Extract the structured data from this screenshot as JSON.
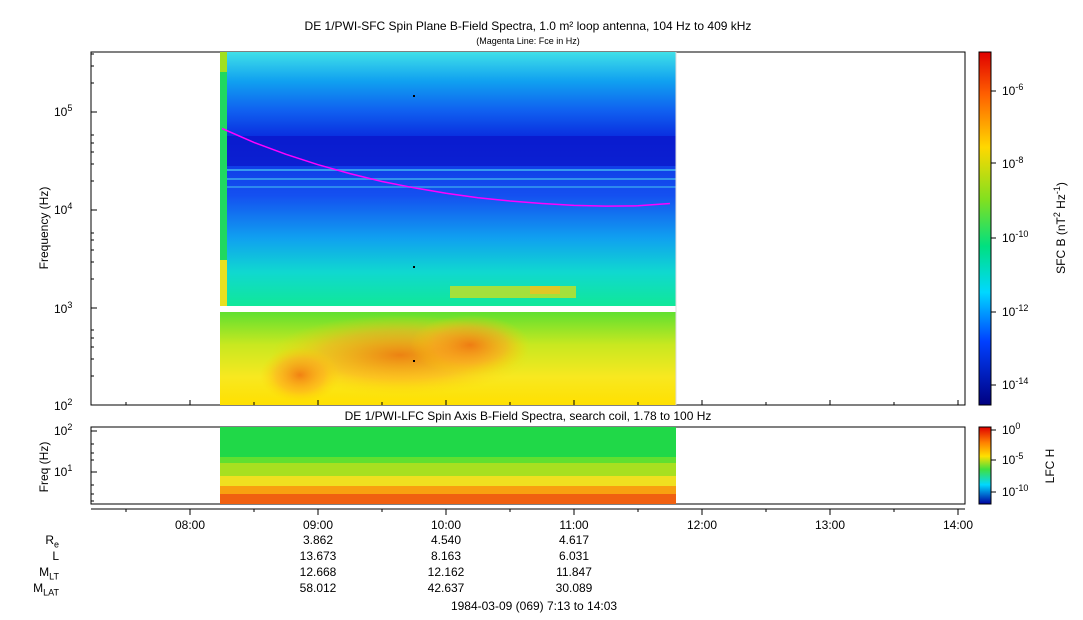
{
  "chart_data": [
    {
      "type": "heatmap",
      "title": "DE 1/PWI-SFC  Spin Plane B-Field Spectra, 1.0 m² loop antenna, 104 Hz to 409 kHz",
      "subtitle": "(Magenta Line: Fce in Hz)",
      "ylabel": "Frequency (Hz)",
      "yscale": "log",
      "ylim": [
        100,
        409000
      ],
      "y_tick_labels": [
        "10",
        "10",
        "10",
        "10"
      ],
      "y_tick_exponents": [
        "2",
        "3",
        "4",
        "5"
      ],
      "xlim": [
        "07:13",
        "14:03"
      ],
      "data_interval": [
        "08:15",
        "11:47"
      ],
      "colorbar": {
        "label": "SFC B (nT",
        "label_sup1": "2",
        "label_mid": " Hz",
        "label_sup2": "-1",
        "label_end": ")",
        "scale": "log",
        "range": [
          3e-15,
          1e-05
        ],
        "tick_base": [
          "10",
          "10",
          "10",
          "10",
          "10"
        ],
        "tick_exponents": [
          "-6",
          "-8",
          "-10",
          "-12",
          "-14"
        ]
      },
      "series": [
        {
          "name": "Fce",
          "color": "#ff00ff",
          "x": [
            "08:15",
            "08:30",
            "08:45",
            "09:00",
            "09:15",
            "09:30",
            "09:45",
            "10:00",
            "10:15",
            "10:30",
            "10:45",
            "11:00",
            "11:15",
            "11:30",
            "11:45"
          ],
          "y": [
            68000,
            49000,
            37000,
            29000,
            23500,
            19500,
            16800,
            14800,
            13300,
            12300,
            11600,
            11100,
            10900,
            11000,
            11600
          ]
        }
      ]
    },
    {
      "type": "heatmap",
      "title": "DE 1/PWI-LFC  Spin Axis B-Field Spectra, search coil, 1.78 to 100 Hz",
      "ylabel": "Freq (Hz)",
      "yscale": "log",
      "ylim": [
        1.78,
        100
      ],
      "y_tick_labels": [
        "10",
        "10"
      ],
      "y_tick_exponents": [
        "2",
        "1"
      ],
      "colorbar": {
        "label": "LFC H",
        "scale": "log",
        "range": [
          1e-12,
          1
        ],
        "tick_base": [
          "10",
          "10",
          "10"
        ],
        "tick_exponents": [
          "0",
          "-5",
          "-10"
        ]
      }
    }
  ],
  "x_axis": {
    "tick_labels": [
      "08:00",
      "09:00",
      "10:00",
      "11:00",
      "12:00",
      "13:00",
      "14:00"
    ]
  },
  "ephemeris": {
    "rows": [
      {
        "label": "R",
        "sub": "e",
        "values": [
          "3.862",
          "4.540",
          "4.617"
        ]
      },
      {
        "label": "L",
        "sub": "",
        "values": [
          "13.673",
          "8.163",
          "6.031"
        ]
      },
      {
        "label": "M",
        "sub": "LT",
        "values": [
          "12.668",
          "12.162",
          "11.847"
        ]
      },
      {
        "label": "M",
        "sub": "LAT",
        "values": [
          "58.012",
          "42.637",
          "30.089"
        ]
      }
    ]
  },
  "footer": "1984-03-09 (069) 7:13 to 14:03"
}
